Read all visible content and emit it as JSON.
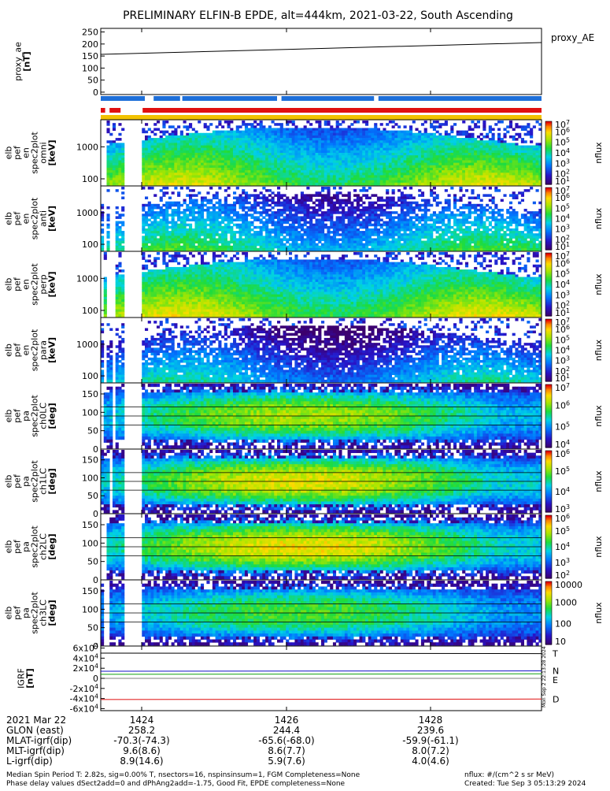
{
  "title": "PRELIMINARY ELFIN-B EPDE, alt=444km, 2021-03-22, South Ascending",
  "colors": {
    "proxy_line": "#000000",
    "flag_blue": "#1e6fd9",
    "flag_red": "#e01010",
    "flag_yellow": "#f2c200",
    "igrf_T": "#000000",
    "igrf_N": "#1010c8",
    "igrf_E": "#10a010",
    "igrf_D": "#e01010"
  },
  "flag_bars": {
    "blue": [
      [
        0.0,
        0.1
      ],
      [
        0.12,
        0.18
      ],
      [
        0.185,
        0.4
      ],
      [
        0.41,
        0.62
      ],
      [
        0.63,
        1.0
      ]
    ],
    "red": [
      [
        0.0,
        0.01
      ],
      [
        0.02,
        0.045
      ],
      [
        0.095,
        1.0
      ]
    ],
    "yellow": [
      [
        0.0,
        1.0
      ]
    ]
  },
  "chart_data": [
    {
      "type": "line",
      "name": "proxy_ae",
      "ylabel": [
        "proxy_ae",
        "[nT]"
      ],
      "yticks": [
        0,
        50,
        100,
        150,
        200,
        250
      ],
      "ylim": [
        -10,
        265
      ],
      "x": [
        0,
        1
      ],
      "series": [
        {
          "name": "proxy_AE",
          "values": [
            157,
            206
          ]
        }
      ]
    },
    {
      "type": "heatmap",
      "name": "omni",
      "ylabel": [
        "elb",
        "pef",
        "en",
        "spec2plot",
        "omni",
        "[keV]"
      ],
      "yscale": "log",
      "ylim": [
        60,
        7000
      ],
      "yticks": [
        100,
        1000
      ],
      "ytick_labels": [
        "100",
        "1000"
      ],
      "colorbar": {
        "label": "nflux",
        "scale": "log",
        "range": [
          1,
          10000000
        ],
        "tick_labels": [
          "10^1",
          "10^2",
          "10^3",
          "10^4",
          "10^5",
          "10^6",
          "10^7"
        ]
      }
    },
    {
      "type": "heatmap",
      "name": "anti",
      "ylabel": [
        "elb",
        "pef",
        "en",
        "spec2plot",
        "anti",
        "[keV]"
      ],
      "yscale": "log",
      "ylim": [
        60,
        7000
      ],
      "yticks": [
        100,
        1000
      ],
      "ytick_labels": [
        "100",
        "1000"
      ],
      "colorbar": {
        "label": "nflux",
        "scale": "log",
        "range": [
          1,
          10000000
        ],
        "tick_labels": [
          "10^1",
          "10^2",
          "10^3",
          "10^4",
          "10^5",
          "10^6",
          "10^7"
        ]
      }
    },
    {
      "type": "heatmap",
      "name": "perp",
      "ylabel": [
        "elb",
        "pef",
        "en",
        "spec2plot",
        "perp",
        "[keV]"
      ],
      "yscale": "log",
      "ylim": [
        60,
        7000
      ],
      "yticks": [
        100,
        1000
      ],
      "ytick_labels": [
        "100",
        "1000"
      ],
      "colorbar": {
        "label": "nflux",
        "scale": "log",
        "range": [
          1,
          10000000
        ],
        "tick_labels": [
          "10^1",
          "10^2",
          "10^3",
          "10^4",
          "10^5",
          "10^6",
          "10^7"
        ]
      }
    },
    {
      "type": "heatmap",
      "name": "para",
      "ylabel": [
        "elb",
        "pef",
        "en",
        "spec2plot",
        "para",
        "[keV]"
      ],
      "yscale": "log",
      "ylim": [
        60,
        7000
      ],
      "yticks": [
        100,
        1000
      ],
      "ytick_labels": [
        "100",
        "1000"
      ],
      "colorbar": {
        "label": "nflux",
        "scale": "log",
        "range": [
          1,
          10000000
        ],
        "tick_labels": [
          "10^1",
          "10^2",
          "10^3",
          "10^4",
          "10^5",
          "10^6",
          "10^7"
        ]
      }
    },
    {
      "type": "heatmap",
      "name": "ch0LC",
      "ylabel": [
        "elb",
        "pef",
        "pa",
        "spec2plot",
        "ch0LC",
        "[deg]"
      ],
      "ylim": [
        0,
        180
      ],
      "yticks": [
        0,
        50,
        100,
        150
      ],
      "ytick_labels": [
        "0",
        "50",
        "100",
        "150"
      ],
      "colorbar": {
        "label": "nflux",
        "scale": "log",
        "range": [
          3000,
          10000000
        ],
        "tick_labels": [
          "10^4",
          "10^5",
          "10^6",
          "10^7"
        ]
      }
    },
    {
      "type": "heatmap",
      "name": "ch1LC",
      "ylabel": [
        "elb",
        "pef",
        "pa",
        "spec2plot",
        "ch1LC",
        "[deg]"
      ],
      "ylim": [
        0,
        180
      ],
      "yticks": [
        0,
        50,
        100,
        150
      ],
      "ytick_labels": [
        "0",
        "50",
        "100",
        "150"
      ],
      "colorbar": {
        "label": "nflux",
        "scale": "log",
        "range": [
          1000,
          2000000
        ],
        "tick_labels": [
          "10^3",
          "10^4",
          "10^5",
          "10^6"
        ]
      }
    },
    {
      "type": "heatmap",
      "name": "ch2LC",
      "ylabel": [
        "elb",
        "pef",
        "pa",
        "spec2plot",
        "ch2LC",
        "[deg]"
      ],
      "ylim": [
        0,
        180
      ],
      "yticks": [
        0,
        50,
        100,
        150
      ],
      "ytick_labels": [
        "0",
        "50",
        "100",
        "150"
      ],
      "colorbar": {
        "label": "nflux",
        "scale": "log",
        "range": [
          100,
          1000000
        ],
        "tick_labels": [
          "10^2",
          "10^3",
          "10^4",
          "10^5",
          "10^6"
        ]
      }
    },
    {
      "type": "heatmap",
      "name": "ch3LC",
      "ylabel": [
        "elb",
        "pef",
        "pa",
        "spec2plot",
        "ch3LC",
        "[deg]"
      ],
      "ylim": [
        0,
        180
      ],
      "yticks": [
        0,
        50,
        100,
        150
      ],
      "ytick_labels": [
        "0",
        "50",
        "100",
        "150"
      ],
      "colorbar": {
        "label": "nflux",
        "scale": "log",
        "range": [
          10,
          10000
        ],
        "tick_labels": [
          "10",
          "100",
          "1000",
          "10000"
        ]
      }
    },
    {
      "type": "line",
      "name": "IGRF",
      "ylabel": [
        "IGRF",
        "[nT]"
      ],
      "ylim": [
        -64000,
        64000
      ],
      "yticks": [
        -60000,
        -40000,
        -20000,
        0,
        20000,
        40000,
        60000
      ],
      "ytick_labels": [
        "-6x10^4",
        "-4x10^4",
        "-2x10^4",
        "0",
        "2x10^4",
        "4x10^4",
        "6x10^4"
      ],
      "x": [
        0,
        1
      ],
      "series": [
        {
          "name": "T",
          "values": [
            50000,
            49000
          ]
        },
        {
          "name": "N",
          "values": [
            14000,
            14800
          ]
        },
        {
          "name": "E",
          "values": [
            8000,
            9000
          ]
        },
        {
          "name": "D",
          "values": [
            -42000,
            -41000
          ]
        }
      ]
    }
  ],
  "x_axis": {
    "ticks": [
      "1424",
      "1426",
      "1428"
    ],
    "rows": [
      {
        "label": "2021 Mar 22",
        "values": [
          "1424",
          "1426",
          "1428"
        ]
      },
      {
        "label": "GLON (east)",
        "values": [
          "258.2",
          "244.4",
          "239.6"
        ]
      },
      {
        "label": "MLAT-igrf(dip)",
        "values": [
          "-70.3(-74.3)",
          "-65.6(-68.0)",
          "-59.9(-61.1)"
        ]
      },
      {
        "label": "MLT-igrf(dip)",
        "values": [
          "9.6(8.6)",
          "8.6(7.7)",
          "8.0(7.2)"
        ]
      },
      {
        "label": "L-igrf(dip)",
        "values": [
          "8.9(14.6)",
          "5.9(7.6)",
          "4.0(4.6)"
        ]
      }
    ]
  },
  "footer": {
    "left1": "Median Spin Period T: 2.82s, sig=0.00% T, nsectors=16, nspinsinsum=1, FGM Completeness=None",
    "left2": "Phase delay values dSect2add=0 and dPhAng2add=-1.75, Good Fit, EPDE completeness=None",
    "right1": "nflux: #/(cm^2 s sr MeV)",
    "right2": "Created: Tue Sep  3 05:13:29 2024"
  },
  "side_stamp": "Mon Sep  2 22:13:28 2024"
}
